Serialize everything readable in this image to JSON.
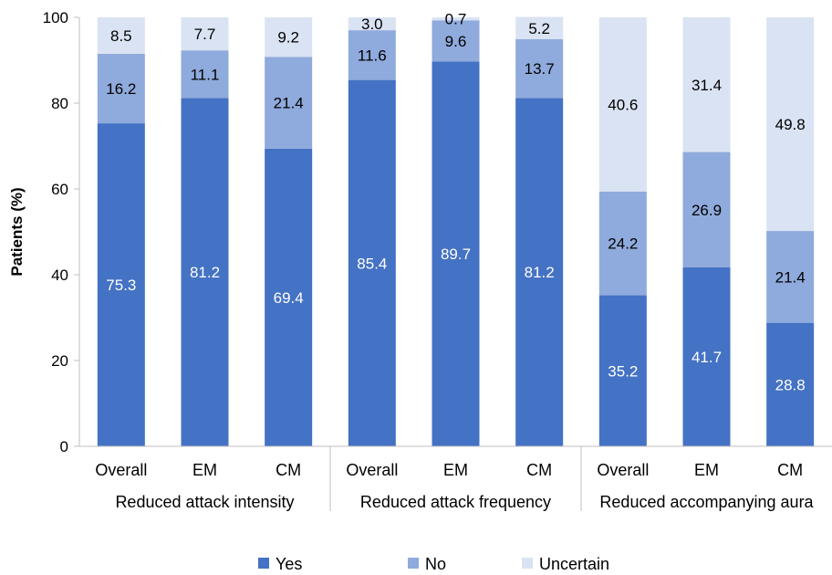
{
  "chart_data": {
    "type": "bar",
    "stacked": true,
    "ylabel": "Patients (%)",
    "ylim": [
      0,
      100
    ],
    "yticks": [
      0,
      20,
      40,
      60,
      80,
      100
    ],
    "grid": false,
    "legend_position": "bottom",
    "groups": [
      {
        "label": "Reduced attack intensity",
        "categories": [
          "Overall",
          "EM",
          "CM"
        ]
      },
      {
        "label": "Reduced attack frequency",
        "categories": [
          "Overall",
          "EM",
          "CM"
        ]
      },
      {
        "label": "Reduced accompanying aura",
        "categories": [
          "Overall",
          "EM",
          "CM"
        ]
      }
    ],
    "categories": [
      "Overall",
      "EM",
      "CM",
      "Overall",
      "EM",
      "CM",
      "Overall",
      "EM",
      "CM"
    ],
    "series": [
      {
        "name": "Yes",
        "color": "#4472C4",
        "label_color": "#ffffff",
        "values": [
          75.3,
          81.2,
          69.4,
          85.4,
          89.7,
          81.2,
          35.2,
          41.7,
          28.8
        ]
      },
      {
        "name": "No",
        "color": "#8FAADC",
        "label_color": "#000000",
        "values": [
          16.2,
          11.1,
          21.4,
          11.6,
          9.6,
          13.7,
          24.2,
          26.9,
          21.4
        ]
      },
      {
        "name": "Uncertain",
        "color": "#DAE3F3",
        "label_color": "#000000",
        "values": [
          8.5,
          7.7,
          9.2,
          3.0,
          0.7,
          5.2,
          40.6,
          31.4,
          49.8
        ]
      }
    ]
  }
}
